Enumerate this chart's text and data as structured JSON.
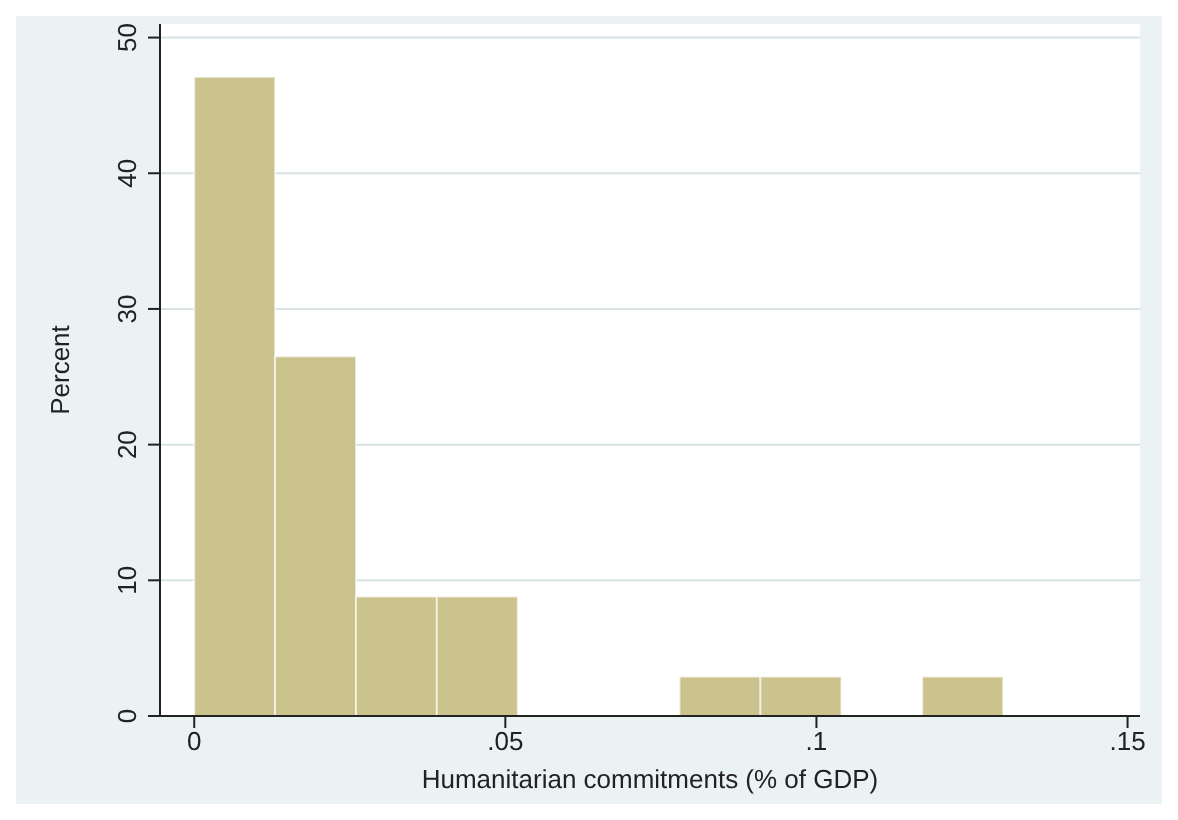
{
  "chart_data": {
    "type": "histogram",
    "xlabel": "Humanitarian commitments (% of GDP)",
    "ylabel": "Percent",
    "bins": [
      0,
      0.013,
      0.026,
      0.039,
      0.052,
      0.065,
      0.078,
      0.091,
      0.104,
      0.117,
      0.13
    ],
    "values": [
      47.1,
      26.5,
      8.8,
      8.8,
      0,
      0,
      2.9,
      2.9,
      0,
      2.9
    ],
    "color": "#cbc38e",
    "xlim": [
      -0.0055,
      0.152
    ],
    "xticks": [
      0,
      {
        "value": 0.05,
        "label": ".05"
      },
      {
        "value": 0.1,
        "label": ".1"
      },
      {
        "value": 0.15,
        "label": ".15"
      }
    ],
    "ylim": [
      0,
      51
    ],
    "yticks": [
      0,
      10,
      20,
      30,
      40,
      50
    ],
    "grid": "y",
    "legend": false
  }
}
